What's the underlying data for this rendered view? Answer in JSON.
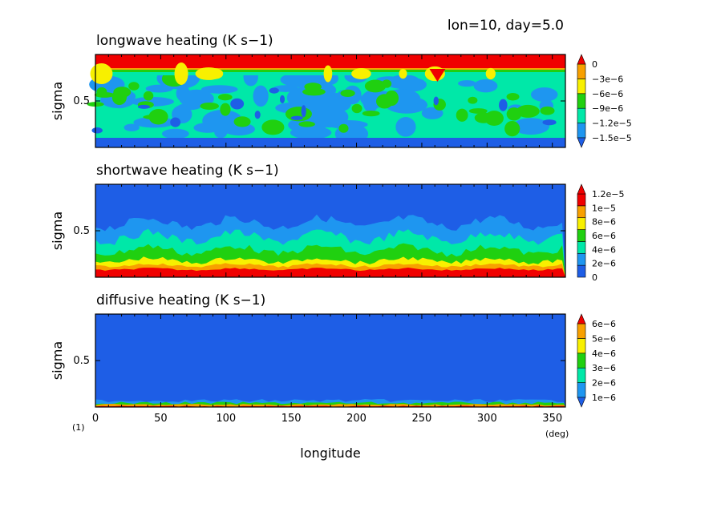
{
  "header": {
    "title": "lon=10, day=5.0"
  },
  "xaxis": {
    "label": "longitude",
    "unit": "(deg)",
    "ticks": [
      0,
      50,
      100,
      150,
      200,
      250,
      300,
      350
    ],
    "range": [
      0,
      360
    ]
  },
  "figure_number": "(1)",
  "colors": [
    "#1e5ee6",
    "#1e96f0",
    "#00e8a8",
    "#20d010",
    "#f8f000",
    "#f8a000",
    "#f00000"
  ],
  "chart_data": [
    {
      "type": "heatmap",
      "title": "longwave heating (K s−1)",
      "ylabel": "sigma",
      "ytick": "0.5",
      "colorbar": {
        "labels": [
          "0",
          "−3e−6",
          "−6e−6",
          "−9e−6",
          "−1.2e−5",
          "−1.5e−5"
        ],
        "levels": [
          -1.5e-05,
          -1.2e-05,
          -9e-06,
          -6e-06,
          -3e-06,
          0
        ],
        "extend": "both"
      }
    },
    {
      "type": "heatmap",
      "title": "shortwave heating (K s−1)",
      "ylabel": "sigma",
      "ytick": "0.5",
      "colorbar": {
        "labels": [
          "1.2e−5",
          "1e−5",
          "8e−6",
          "6e−6",
          "4e−6",
          "2e−6",
          "0"
        ],
        "levels": [
          0,
          2e-06,
          4e-06,
          6e-06,
          8e-06,
          1e-05,
          1.2e-05
        ],
        "extend": "max"
      }
    },
    {
      "type": "heatmap",
      "title": "diffusive heating (K s−1)",
      "ylabel": "sigma",
      "ytick": "0.5",
      "colorbar": {
        "labels": [
          "6e−6",
          "5e−6",
          "4e−6",
          "3e−6",
          "2e−6",
          "1e−6"
        ],
        "levels": [
          1e-06,
          2e-06,
          3e-06,
          4e-06,
          5e-06,
          6e-06
        ],
        "extend": "both"
      }
    }
  ]
}
